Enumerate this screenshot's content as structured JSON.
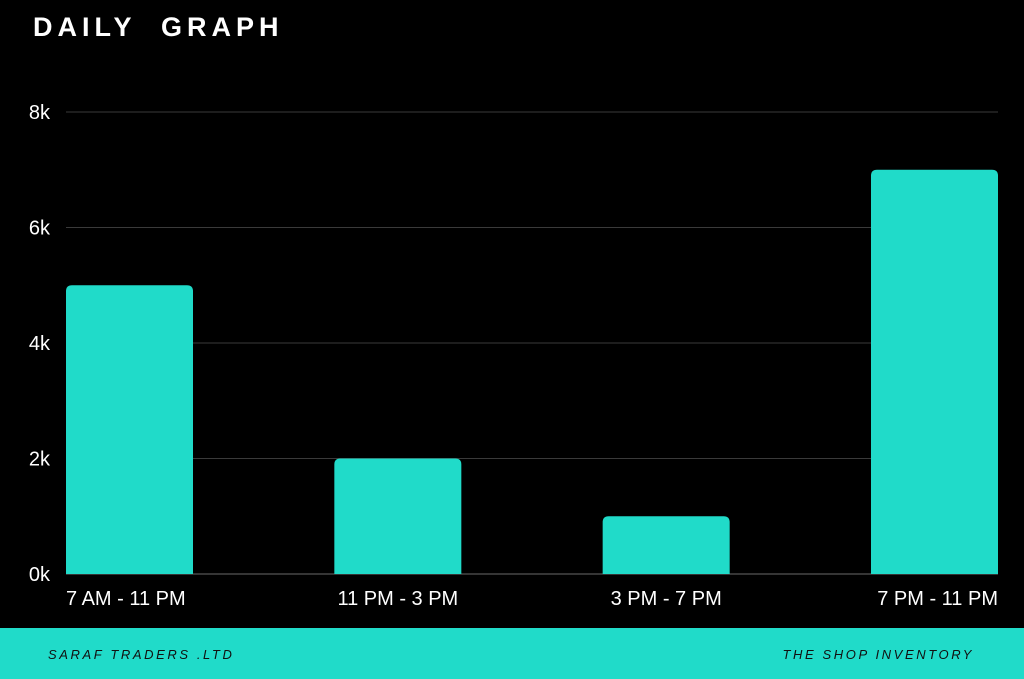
{
  "title": "DAILY  GRAPH",
  "footer": {
    "left": "SARAF TRADERS .LTD",
    "right": "THE SHOP INVENTORY"
  },
  "colors": {
    "background": "#000000",
    "bar": "#20dbc9",
    "grid": "#3a3a3a",
    "text": "#ffffff"
  },
  "chart_data": {
    "type": "bar",
    "title": "DAILY  GRAPH",
    "categories": [
      "7 AM - 11 PM",
      "11 PM - 3 PM",
      "3 PM - 7 PM",
      "7 PM - 11 PM"
    ],
    "values": [
      5000,
      2000,
      1000,
      7000
    ],
    "ylim": [
      0,
      8000
    ],
    "yticks": [
      0,
      2000,
      4000,
      6000,
      8000
    ],
    "ytick_labels": [
      "0k",
      "2k",
      "4k",
      "6k",
      "8k"
    ],
    "xlabel": "",
    "ylabel": "",
    "grid": true,
    "legend": "none"
  }
}
